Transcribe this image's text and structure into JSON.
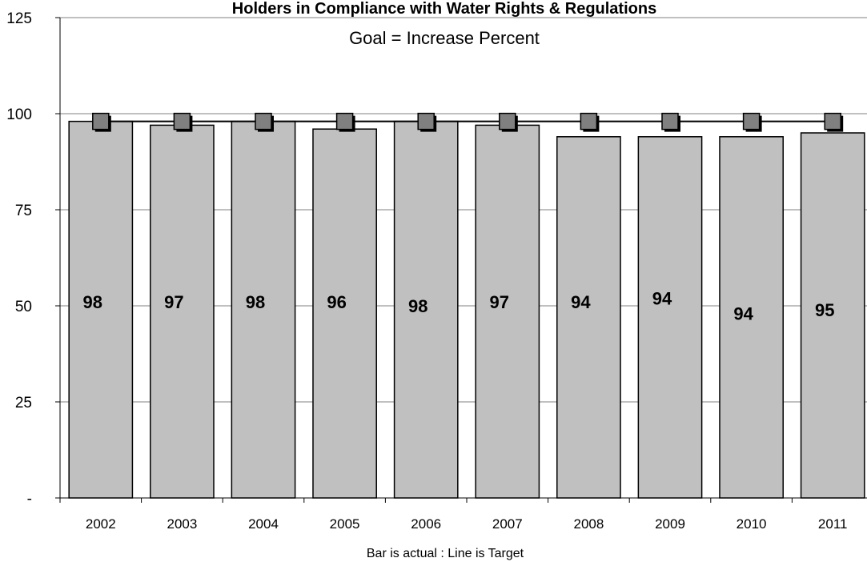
{
  "chart_data": {
    "type": "bar",
    "title": "Holders in Compliance with Water Rights & Regulations",
    "subtitle": "Goal = Increase Percent",
    "xlabel": "Bar is actual  :  Line is Target",
    "ylabel": "",
    "ylim": [
      0,
      125
    ],
    "yticks": [
      {
        "value": 125,
        "label": "125"
      },
      {
        "value": 100,
        "label": "100"
      },
      {
        "value": 75,
        "label": "75"
      },
      {
        "value": 50,
        "label": "50"
      },
      {
        "value": 25,
        "label": "25"
      },
      {
        "value": 0,
        "label": "-"
      }
    ],
    "categories": [
      "2002",
      "2003",
      "2004",
      "2005",
      "2006",
      "2007",
      "2008",
      "2009",
      "2010",
      "2011"
    ],
    "series": [
      {
        "name": "Actual",
        "kind": "bar",
        "values": [
          98,
          97,
          98,
          96,
          98,
          97,
          94,
          94,
          94,
          95
        ],
        "color": "#c0c0c0"
      },
      {
        "name": "Target",
        "kind": "line",
        "values": [
          98,
          98,
          98,
          98,
          98,
          98,
          98,
          98,
          98,
          98
        ],
        "color": "#000000",
        "marker_color": "#808080"
      }
    ],
    "data_labels": [
      "98",
      "97",
      "98",
      "96",
      "98",
      "97",
      "94",
      "94",
      "94",
      "95"
    ],
    "label_positions": [
      51,
      51,
      51,
      51,
      50,
      51,
      51,
      52,
      48,
      49
    ],
    "grid": true,
    "legend": "none"
  }
}
